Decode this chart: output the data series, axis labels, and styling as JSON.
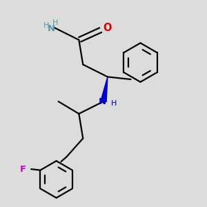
{
  "bg_color": "#dcdcdc",
  "bond_color": "#000000",
  "N_color": "#5599aa",
  "N_amine_color": "#0000cc",
  "O_color": "#dd0000",
  "F_color": "#cc00cc",
  "lw": 1.6,
  "fig_w": 3.0,
  "fig_h": 3.0,
  "dpi": 100,
  "xlim": [
    0,
    10
  ],
  "ylim": [
    0,
    10
  ]
}
